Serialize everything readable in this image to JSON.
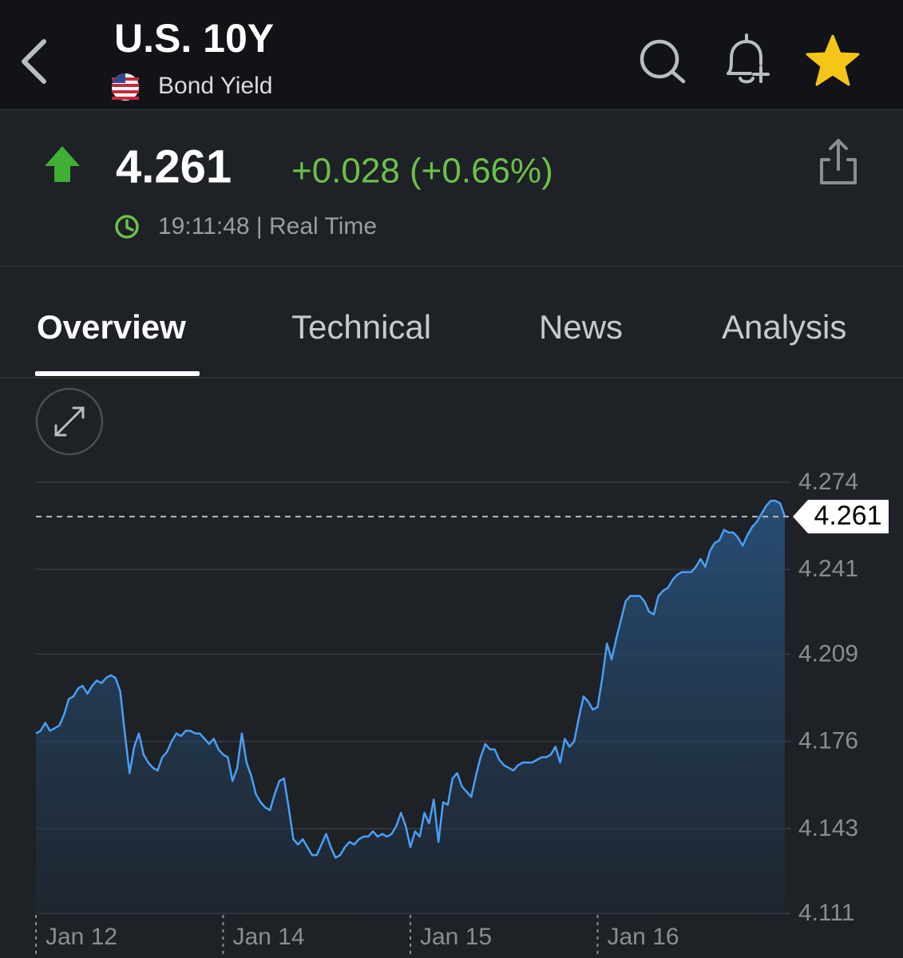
{
  "header": {
    "title": "U.S. 10Y",
    "subtitle": "Bond Yield"
  },
  "quote": {
    "price": "4.261",
    "change": "+0.028 (+0.66%)",
    "time": "19:11:48 | Real Time"
  },
  "tabs": [
    "Overview",
    "Technical",
    "News",
    "Analysis"
  ],
  "chart_data": {
    "type": "line",
    "color": "#4a9ff5",
    "grid": true,
    "values": [
      4.179,
      4.18,
      4.183,
      4.18,
      4.181,
      4.182,
      4.186,
      4.192,
      4.193,
      4.196,
      4.197,
      4.194,
      4.197,
      4.199,
      4.198,
      4.2,
      4.201,
      4.2,
      4.195,
      4.179,
      4.164,
      4.174,
      4.179,
      4.171,
      4.168,
      4.166,
      4.165,
      4.17,
      4.172,
      4.176,
      4.179,
      4.178,
      4.18,
      4.18,
      4.179,
      4.179,
      4.177,
      4.175,
      4.177,
      4.173,
      4.171,
      4.17,
      4.161,
      4.166,
      4.179,
      4.168,
      4.163,
      4.156,
      4.153,
      4.151,
      4.15,
      4.156,
      4.161,
      4.162,
      4.151,
      4.139,
      4.137,
      4.139,
      4.136,
      4.133,
      4.133,
      4.137,
      4.141,
      4.136,
      4.132,
      4.133,
      4.136,
      4.138,
      4.137,
      4.139,
      4.14,
      4.14,
      4.142,
      4.14,
      4.141,
      4.14,
      4.141,
      4.144,
      4.149,
      4.144,
      4.136,
      4.142,
      4.14,
      4.149,
      4.145,
      4.154,
      4.138,
      4.153,
      4.152,
      4.162,
      4.164,
      4.159,
      4.157,
      4.155,
      4.163,
      4.17,
      4.175,
      4.173,
      4.173,
      4.169,
      4.167,
      4.166,
      4.165,
      4.167,
      4.168,
      4.168,
      4.168,
      4.169,
      4.17,
      4.17,
      4.171,
      4.174,
      4.168,
      4.177,
      4.174,
      4.176,
      4.185,
      4.193,
      4.191,
      4.188,
      4.189,
      4.2,
      4.213,
      4.207,
      4.215,
      4.222,
      4.229,
      4.231,
      4.231,
      4.231,
      4.229,
      4.225,
      4.224,
      4.231,
      4.233,
      4.234,
      4.237,
      4.239,
      4.24,
      4.24,
      4.24,
      4.242,
      4.245,
      4.242,
      4.248,
      4.251,
      4.252,
      4.256,
      4.255,
      4.255,
      4.253,
      4.25,
      4.254,
      4.257,
      4.259,
      4.262,
      4.265,
      4.267,
      4.267,
      4.266,
      4.261
    ],
    "xlim": [
      0,
      160
    ],
    "xticks": [
      {
        "value": 0,
        "label": "Jan 12"
      },
      {
        "value": 40,
        "label": "Jan 14"
      },
      {
        "value": 80,
        "label": "Jan 15"
      },
      {
        "value": 120,
        "label": "Jan 16"
      }
    ],
    "ylim": [
      4.111,
      4.274
    ],
    "yticks": [
      4.274,
      4.241,
      4.209,
      4.176,
      4.143,
      4.111
    ],
    "current_value": 4.261
  }
}
